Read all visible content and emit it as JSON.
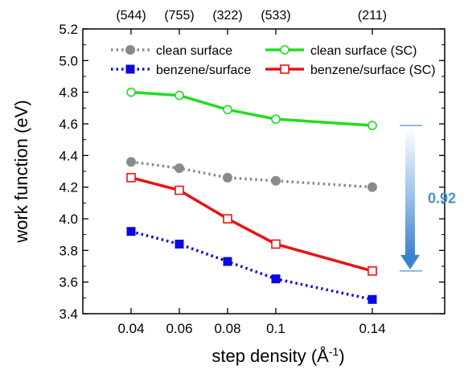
{
  "chart_data": {
    "type": "line",
    "x": [
      0.04,
      0.06,
      0.08,
      0.1,
      0.14
    ],
    "x_tick_labels": [
      "0.04",
      "0.06",
      "0.08",
      "0.1",
      "0.14"
    ],
    "top_axis_labels": [
      "(544)",
      "(755)",
      "(322)",
      "(533)",
      "(211)"
    ],
    "xlim": [
      0.02,
      0.17
    ],
    "ylim": [
      3.4,
      5.2
    ],
    "y_ticks": [
      "3.4",
      "3.6",
      "3.8",
      "4.0",
      "4.2",
      "4.4",
      "4.6",
      "4.8",
      "5.0",
      "5.2"
    ],
    "xlabel": {
      "main": "step density (Å",
      "sup": "-1",
      "close": ")"
    },
    "ylabel": "work function (eV)",
    "grid": false,
    "legend_position": "top",
    "series": [
      {
        "name": "clean surface",
        "values": [
          4.36,
          4.32,
          4.26,
          4.24,
          4.2
        ],
        "color": "#8a8a8a",
        "line_style": "dotted",
        "marker": "filled-circle"
      },
      {
        "name": "clean surface (SC)",
        "values": [
          4.8,
          4.78,
          4.69,
          4.63,
          4.59
        ],
        "color": "#22dd22",
        "line_style": "solid",
        "marker": "open-circle"
      },
      {
        "name": "benzene/surface",
        "values": [
          3.92,
          3.84,
          3.73,
          3.62,
          3.49
        ],
        "color": "#0a0ae0",
        "line_style": "dotted",
        "marker": "filled-square"
      },
      {
        "name": "benzene/surface (SC)",
        "values": [
          4.26,
          4.18,
          4.0,
          3.84,
          3.67
        ],
        "color": "#ee1111",
        "line_style": "solid",
        "marker": "open-square"
      }
    ],
    "annotation": {
      "text": "0.92",
      "from": 4.59,
      "to": 3.67,
      "color": "#4a90d0"
    }
  }
}
